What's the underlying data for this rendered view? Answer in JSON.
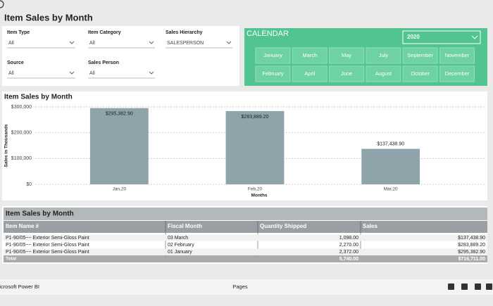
{
  "header": {
    "title": "Item Sales by Month"
  },
  "filters": [
    {
      "label": "Item Type",
      "value": "All"
    },
    {
      "label": "Item Category",
      "value": "All"
    },
    {
      "label": "Sales Hierarchy",
      "value": "SALESPERSON"
    },
    {
      "label": "Source",
      "value": "All"
    },
    {
      "label": "Sales Person",
      "value": "All"
    }
  ],
  "calendar": {
    "title": "CALENDAR",
    "year": "2020",
    "months": [
      [
        "January",
        "March",
        "May",
        "July",
        "September",
        "November"
      ],
      [
        "February",
        "April",
        "June",
        "August",
        "October",
        "December"
      ]
    ]
  },
  "chart_data": {
    "type": "bar",
    "title": "Item Sales by Month",
    "categories": [
      "Jan,20",
      "Feb,20",
      "Mar,20"
    ],
    "values": [
      295382.9,
      283889.2,
      137438.9
    ],
    "value_labels": [
      "$295,382.90",
      "$283,889.20",
      "$137,438.90"
    ],
    "color": "#8fa3ab",
    "xlabel": "Months",
    "ylabel": "Sales in Thousands",
    "ylim": [
      0,
      300000
    ],
    "yticks": [
      {
        "value": 0,
        "label": "$0"
      },
      {
        "value": 100000,
        "label": "$100,000"
      },
      {
        "value": 200000,
        "label": "$200,000"
      },
      {
        "value": 300000,
        "label": "$300,000"
      }
    ],
    "grid": true
  },
  "table": {
    "title": "Item Sales by Month",
    "columns": [
      "Item Name #",
      "Fiscal Month",
      "Quantity Shipped",
      "Sales"
    ],
    "rows": [
      [
        "P1-90/05~~ Exterior Semi-Gloss Paint",
        "03 March",
        "1,098.00",
        "$137,438.90"
      ],
      [
        "P1-90/05~~ Exterior Semi-Gloss Paint",
        "02 February",
        "2,270.00",
        "$283,889.20"
      ],
      [
        "P1-90/05~~ Exterior Semi-Gloss Paint",
        "01 January",
        "2,372.00",
        "$295,382.90"
      ]
    ],
    "total": {
      "label": "Total",
      "quantity": "5,740.00",
      "sales": "$716,711.00"
    }
  },
  "footer": {
    "brand": "Microsoft Power BI",
    "pages": "Pages"
  }
}
